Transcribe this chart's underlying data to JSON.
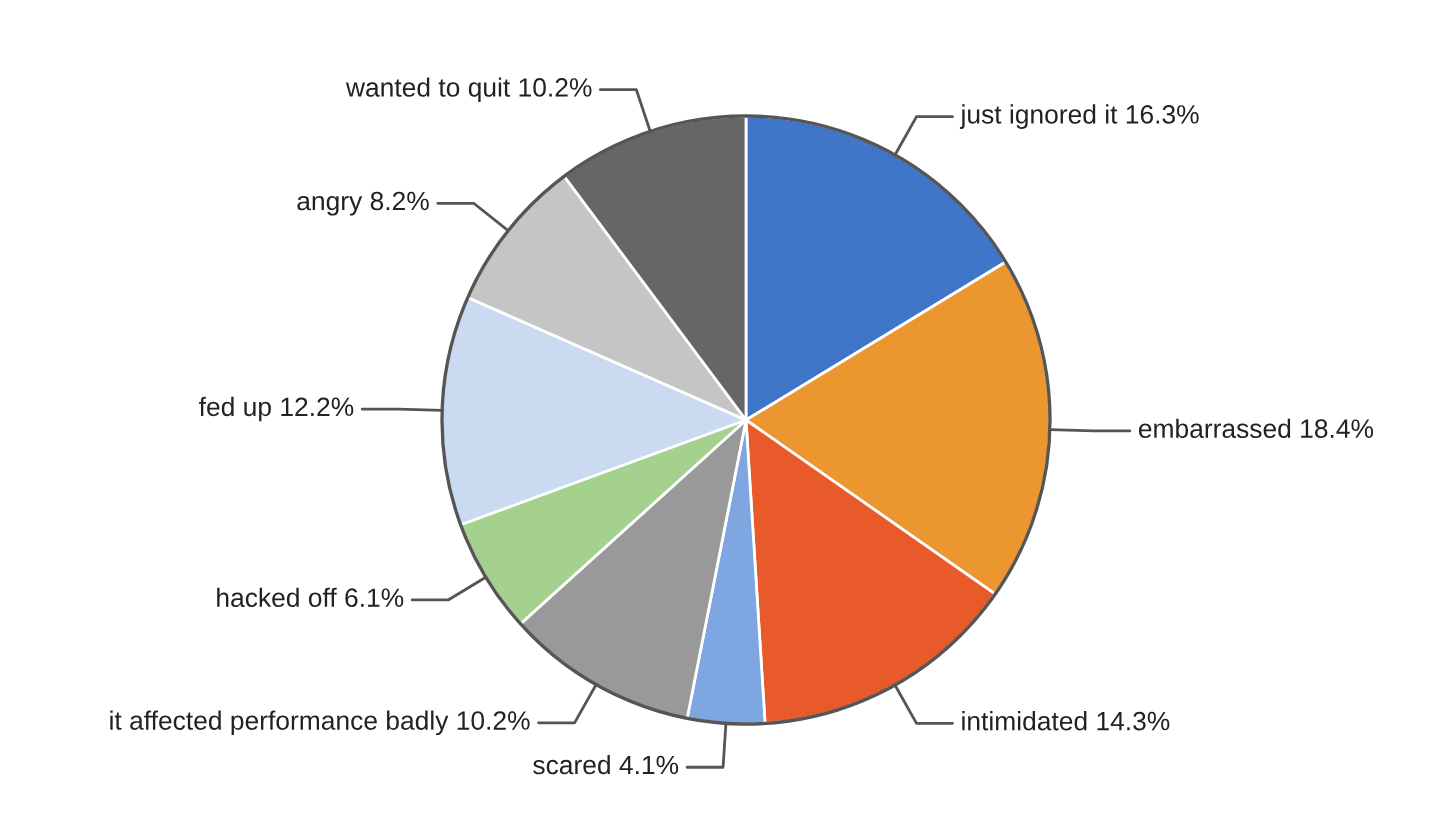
{
  "chart_data": {
    "type": "pie",
    "categories": [
      "just ignored it",
      "embarrassed",
      "intimidated",
      "scared",
      "it affected performance badly",
      "hacked off",
      "fed up",
      "angry",
      "wanted to quit"
    ],
    "values": [
      16.3,
      18.4,
      14.3,
      4.1,
      10.2,
      6.1,
      12.2,
      8.2,
      10.2
    ],
    "value_labels": [
      "16.3%",
      "18.4%",
      "14.3%",
      "4.1%",
      "10.2%",
      "6.1%",
      "12.2%",
      "8.2%",
      "10.2%"
    ],
    "colors": [
      "#3f76c8",
      "#eb962f",
      "#e85a2a",
      "#7ea6e0",
      "#999999",
      "#a5d18e",
      "#c9daf1",
      "#c5c5c5",
      "#666666"
    ],
    "legend": false
  }
}
